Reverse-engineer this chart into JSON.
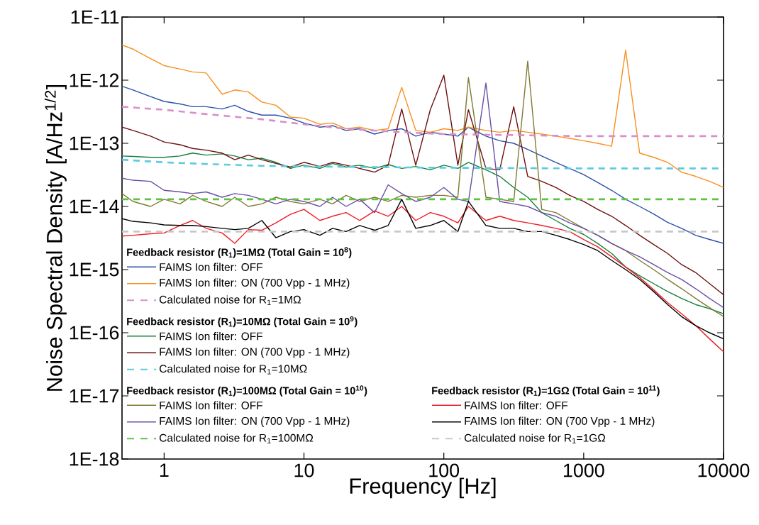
{
  "chart_data": {
    "type": "line",
    "xlabel": "Frequency [Hz]",
    "ylabel": "Noise Spectral Density [A/Hz$^{1/2}$]",
    "log": "xy",
    "legend": "bottom left",
    "xlim": [
      0.5,
      10000
    ],
    "xticks": [
      1,
      10,
      100,
      1000,
      10000
    ],
    "ylim": [
      1e-18,
      1e-11
    ],
    "yticks": [
      {
        "value": 1e-18,
        "label": "1E-18"
      },
      {
        "value": 1e-17,
        "label": "1E-17"
      },
      {
        "value": 1e-16,
        "label": "1E-16"
      },
      {
        "value": 1e-15,
        "label": "1E-15"
      },
      {
        "value": 1e-14,
        "label": "1E-14"
      },
      {
        "value": 1e-13,
        "label": "1E-13"
      },
      {
        "value": 1e-12,
        "label": "1E-12"
      },
      {
        "value": 1e-11,
        "label": "1E-11"
      }
    ],
    "annotations": [
      "Feedback resistor (R$_{1}$)=1MΩ (Total Gain = 10$^{8}$)",
      "Feedback resistor (R$_{1}$)=10MΩ (Total Gain = 10$^{9}$)",
      "Feedback resistor (R$_{1}$)=100MΩ (Total Gain = 10$^{10}$)",
      "Feedback resistor (R$_{1}$)=1GΩ (Total Gain = 10$^{11}$)"
    ],
    "x": [
      0.5,
      0.6,
      0.8,
      1,
      1.3,
      1.6,
      2,
      2.6,
      3.2,
      4,
      5,
      6.3,
      8,
      10,
      13,
      16,
      20,
      25,
      32,
      40,
      50,
      63,
      80,
      100,
      126,
      150,
      200,
      251,
      316,
      398,
      501,
      631,
      794,
      1000,
      1259,
      1585,
      1995,
      2512,
      3162,
      3981,
      5012,
      6310,
      7943,
      10000
    ],
    "series": [
      {
        "name": "FAIMS Ion filter: OFF",
        "color": "#2b4fa8",
        "line_style": "solid",
        "values": [
          8e-13,
          7e-13,
          5.5e-13,
          4.6e-13,
          4.2e-13,
          3.8e-13,
          3.8e-13,
          3.5e-13,
          4e-13,
          3.2e-13,
          2.8e-13,
          2.8e-13,
          2.5e-13,
          2.1e-13,
          1.8e-13,
          1.9e-13,
          1.6e-13,
          1.7e-13,
          1.4e-13,
          1.6e-13,
          1.7e-13,
          1.3e-13,
          1.5e-13,
          1.4e-13,
          1.3e-13,
          1.8e-13,
          1.3e-13,
          1.1e-13,
          1e-13,
          8e-14,
          6.3e-14,
          5e-14,
          4e-14,
          3.2e-14,
          2.4e-14,
          1.8e-14,
          1.3e-14,
          1e-14,
          7.6e-15,
          5.6e-15,
          4.5e-15,
          3.5e-15,
          3e-15,
          2.6e-15
        ]
      },
      {
        "name": "FAIMS Ion filter: ON (700 Vpp - 1 MHz)",
        "color": "#f7901e",
        "line_style": "solid",
        "values": [
          3.6e-12,
          3.1e-12,
          2.2e-12,
          1.7e-12,
          1.5e-12,
          1.35e-12,
          1.3e-12,
          6e-13,
          7e-13,
          6.5e-13,
          4.5e-13,
          4e-13,
          2.6e-13,
          2.5e-13,
          2e-13,
          2.1e-13,
          1.7e-13,
          1.8e-13,
          1.6e-13,
          1.7e-13,
          7.7e-13,
          1.6e-13,
          1.5e-13,
          1.7e-13,
          1.6e-13,
          1.8e-13,
          1.6e-13,
          1.5e-13,
          1.6e-13,
          1.5e-13,
          1.4e-13,
          1.3e-13,
          1.2e-13,
          1.1e-13,
          1e-13,
          9e-14,
          3e-12,
          7e-14,
          6e-14,
          5e-14,
          3.5e-14,
          3e-14,
          2.5e-14,
          2e-14
        ]
      },
      {
        "name": "Calculated noise for R$_{1}$=1MΩ",
        "color": "#d98fc9",
        "line_style": "dashed",
        "x": [
          0.5,
          1,
          2,
          5,
          10,
          20,
          50,
          100,
          1000,
          10000
        ],
        "values": [
          3.8e-13,
          3.4e-13,
          2.9e-13,
          2.4e-13,
          2e-13,
          1.7e-13,
          1.5e-13,
          1.4e-13,
          1.3e-13,
          1.3e-13
        ]
      },
      {
        "name": "FAIMS Ion filter: OFF",
        "color": "#12813a",
        "line_style": "solid",
        "values": [
          6.3e-14,
          6.2e-14,
          6e-14,
          6e-14,
          6.3e-14,
          7e-14,
          6.5e-14,
          6.8e-14,
          6.3e-14,
          5.5e-14,
          5.8e-14,
          5e-14,
          4e-14,
          4.5e-14,
          4e-14,
          4.8e-14,
          4.2e-14,
          4.5e-14,
          4e-14,
          4.6e-14,
          4e-14,
          4.3e-14,
          3.8e-14,
          4.5e-14,
          4e-14,
          5e-14,
          3.8e-14,
          3e-14,
          2e-14,
          1.4e-14,
          8e-15,
          6e-15,
          4.5e-15,
          3.6e-15,
          2.6e-15,
          1.8e-15,
          1.1e-15,
          8e-16,
          6e-16,
          4.5e-16,
          3.5e-16,
          2.8e-16,
          2.4e-16,
          2e-16
        ]
      },
      {
        "name": "FAIMS Ion filter: ON (700 Vpp - 1 MHz)",
        "color": "#6e0f0f",
        "line_style": "solid",
        "values": [
          1.8e-13,
          1.6e-13,
          1.3e-13,
          1.05e-13,
          9.5e-14,
          8.3e-14,
          7.8e-14,
          7e-14,
          5.5e-14,
          6.5e-14,
          5.5e-14,
          4.8e-14,
          4.2e-14,
          5e-14,
          4.3e-14,
          5e-14,
          4.5e-14,
          4e-14,
          3.5e-14,
          4.5e-14,
          3.5e-13,
          4.5e-14,
          3.4e-13,
          1.2e-12,
          4.5e-14,
          3.4e-13,
          4e-14,
          3.8e-14,
          3.8e-13,
          3e-14,
          2.5e-14,
          2e-14,
          1.5e-14,
          1.2e-14,
          9e-15,
          7e-15,
          5e-15,
          3.5e-15,
          2.5e-15,
          1.8e-15,
          1.2e-15,
          9e-16,
          6e-16,
          4e-16
        ]
      },
      {
        "name": "Calculated noise for R$_{1}$=10MΩ",
        "color": "#5ccbe0",
        "line_style": "dashed",
        "x": [
          0.5,
          1,
          2,
          5,
          10,
          100,
          1000,
          10000
        ],
        "values": [
          5.5e-14,
          5e-14,
          4.7e-14,
          4.4e-14,
          4.3e-14,
          4.1e-14,
          4e-14,
          4e-14
        ]
      },
      {
        "name": "FAIMS Ion filter: OFF",
        "color": "#7e7a30",
        "line_style": "solid",
        "values": [
          1.6e-14,
          1.2e-14,
          1e-14,
          1.3e-14,
          1.1e-14,
          1.5e-14,
          1.2e-14,
          1e-14,
          1.4e-14,
          1e-14,
          1.1e-14,
          1.4e-14,
          1.2e-14,
          1.1e-14,
          1.3e-14,
          1.1e-14,
          1.5e-14,
          1.2e-14,
          1.4e-14,
          1.2e-14,
          1.5e-14,
          1.4e-14,
          1.5e-14,
          1.5e-14,
          1.4e-14,
          1.1e-12,
          1.4e-14,
          1.3e-14,
          1.2e-14,
          2e-12,
          9e-15,
          8e-15,
          6e-15,
          4.5e-15,
          3.5e-15,
          2.6e-15,
          2e-15,
          1.4e-15,
          1e-15,
          7e-16,
          5e-16,
          3.5e-16,
          2.5e-16,
          1.8e-16
        ]
      },
      {
        "name": "FAIMS Ion filter: ON (700 Vpp - 1 MHz)",
        "color": "#6a4fa5",
        "line_style": "solid",
        "values": [
          2.8e-14,
          2.6e-14,
          2.5e-14,
          1.8e-14,
          1.7e-14,
          1.6e-14,
          1.7e-14,
          1.4e-14,
          1.6e-14,
          1.5e-14,
          1.3e-14,
          1.1e-14,
          1.3e-14,
          1.2e-14,
          1e-14,
          1.4e-14,
          1e-14,
          1.3e-14,
          8e-15,
          2.2e-14,
          1.6e-14,
          1.2e-14,
          1.4e-14,
          2e-14,
          1.3e-14,
          1.2e-14,
          9e-13,
          1.2e-14,
          1.1e-14,
          1e-14,
          8e-15,
          7e-15,
          5.5e-15,
          4.5e-15,
          3.5e-15,
          2.6e-15,
          2e-15,
          1.6e-15,
          1.2e-15,
          9e-16,
          7e-16,
          5e-16,
          3.5e-16,
          2.5e-16
        ]
      },
      {
        "name": "Calculated noise for R$_{1}$=100MΩ",
        "color": "#5fc245",
        "line_style": "dashed",
        "x": [
          0.5,
          10000
        ],
        "values": [
          1.3e-14,
          1.3e-14
        ]
      },
      {
        "name": "FAIMS Ion filter: OFF",
        "color": "#ee1c24",
        "line_style": "solid",
        "values": [
          3.4e-15,
          3.5e-15,
          3.7e-15,
          3.8e-15,
          5e-15,
          6e-15,
          4.5e-15,
          3.8e-15,
          2.6e-15,
          4.3e-15,
          4.2e-15,
          5.5e-15,
          7.5e-15,
          9e-15,
          6e-15,
          7e-15,
          8e-15,
          6e-15,
          8.5e-15,
          7e-15,
          1e-14,
          6e-15,
          8e-15,
          7e-15,
          5.5e-15,
          1e-14,
          6e-15,
          7e-15,
          6e-15,
          5.5e-15,
          5e-15,
          4.5e-15,
          4e-15,
          3e-15,
          2.3e-15,
          1.6e-15,
          1.1e-15,
          7.5e-16,
          4.8e-16,
          3e-16,
          2e-16,
          1.3e-16,
          8e-17,
          5e-17
        ]
      },
      {
        "name": "FAIMS Ion filter: ON (700 Vpp - 1 MHz)",
        "color": "#000000",
        "line_style": "solid",
        "values": [
          6.4e-15,
          5.8e-15,
          5.5e-15,
          5.1e-15,
          5e-15,
          5e-15,
          4.8e-15,
          4.5e-15,
          4.3e-15,
          4.5e-15,
          6e-15,
          3.2e-15,
          4e-15,
          4.3e-15,
          3.5e-15,
          4.5e-15,
          4e-15,
          5e-15,
          4.2e-15,
          5e-15,
          1.3e-14,
          4.5e-15,
          5e-15,
          6e-15,
          4e-15,
          1.2e-14,
          5e-15,
          4.5e-15,
          4.5e-15,
          4e-15,
          4e-15,
          3.5e-15,
          3e-15,
          2.5e-15,
          2e-15,
          1.4e-15,
          1e-15,
          7e-16,
          4.5e-16,
          2.8e-16,
          1.8e-16,
          1.3e-16,
          1e-16,
          8e-17
        ]
      },
      {
        "name": "Calculated noise for R$_{1}$=1GΩ",
        "color": "#c8c8c8",
        "line_style": "dashed",
        "x": [
          0.5,
          10000
        ],
        "values": [
          4e-15,
          4e-15
        ]
      }
    ]
  }
}
